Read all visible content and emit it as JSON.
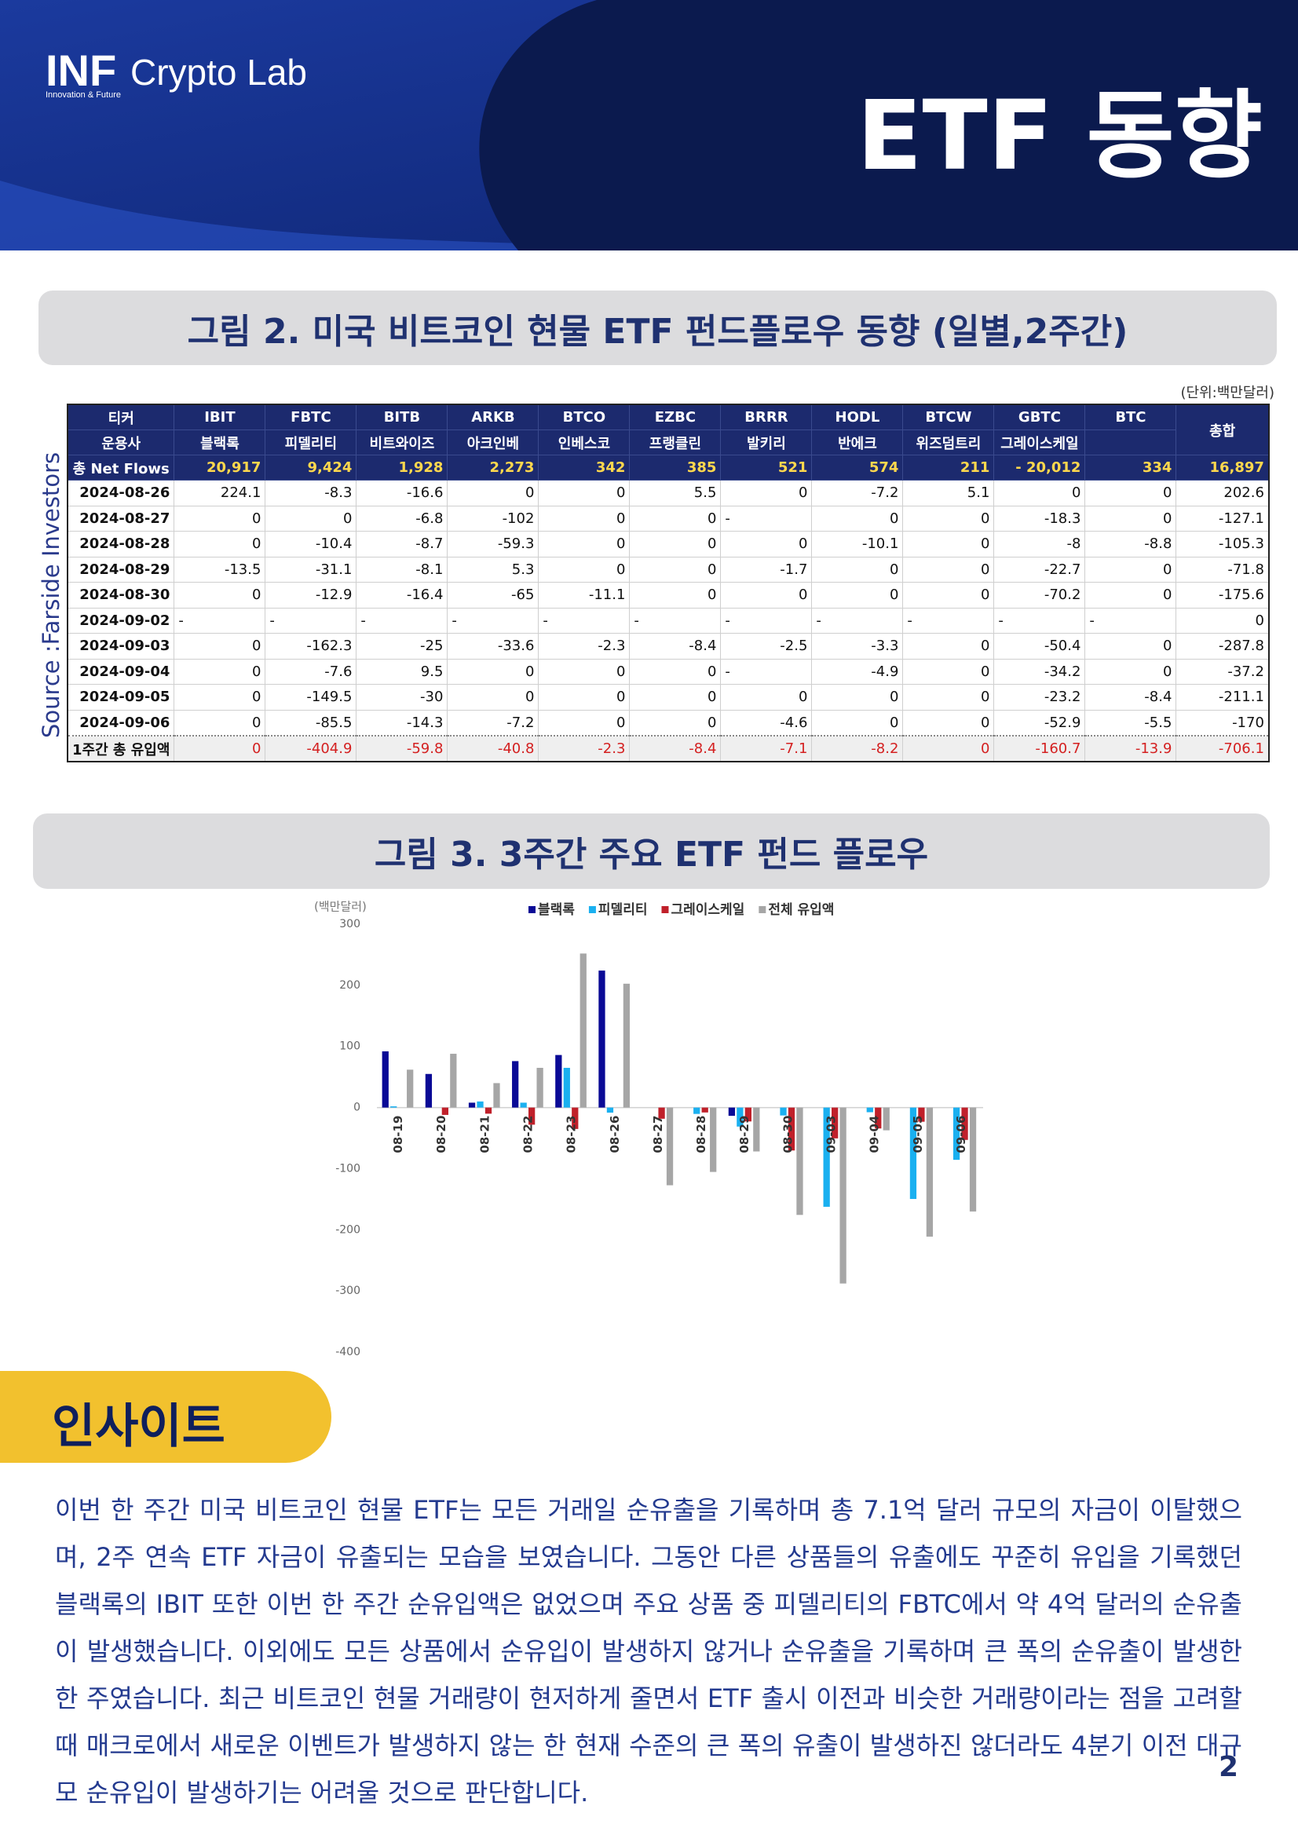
{
  "header": {
    "logo": "INF",
    "brand": "Crypto Lab",
    "tagline": "Innovation & Future",
    "title": "ETF 동향"
  },
  "figure2": {
    "title": "그림 2.  미국 비트코인 현물 ETF 펀드플로우 동향 (일별,2주간)",
    "unit": "(단위:백만달러)",
    "source": "Source :Farside Investors",
    "table": {
      "ticker_label": "티커",
      "issuer_label": "운용사",
      "total_label": "총합",
      "tickers": [
        "IBIT",
        "FBTC",
        "BITB",
        "ARKB",
        "BTCO",
        "EZBC",
        "BRRR",
        "HODL",
        "BTCW",
        "GBTC",
        "BTC"
      ],
      "issuers": [
        "블랙록",
        "피델리티",
        "비트와이즈",
        "아크인베",
        "인베스코",
        "프랭클린",
        "발키리",
        "반에크",
        "위즈덤트리",
        "그레이스케일"
      ],
      "net_flows": {
        "label": "총 Net Flows",
        "cells": [
          "20,917",
          "9,424",
          "1,928",
          "2,273",
          "342",
          "385",
          "521",
          "574",
          "211",
          "- 20,012",
          "334",
          "16,897"
        ]
      },
      "rows": [
        {
          "date": "2024-08-26",
          "cells": [
            "224.1",
            "-8.3",
            "-16.6",
            "0",
            "0",
            "5.5",
            "0",
            "-7.2",
            "5.1",
            "0",
            "0",
            "202.6"
          ]
        },
        {
          "date": "2024-08-27",
          "cells": [
            "0",
            "0",
            "-6.8",
            "-102",
            "0",
            "0",
            "-",
            "0",
            "0",
            "-18.3",
            "0",
            "-127.1"
          ]
        },
        {
          "date": "2024-08-28",
          "cells": [
            "0",
            "-10.4",
            "-8.7",
            "-59.3",
            "0",
            "0",
            "0",
            "-10.1",
            "0",
            "-8",
            "-8.8",
            "-105.3"
          ]
        },
        {
          "date": "2024-08-29",
          "cells": [
            "-13.5",
            "-31.1",
            "-8.1",
            "5.3",
            "0",
            "0",
            "-1.7",
            "0",
            "0",
            "-22.7",
            "0",
            "-71.8"
          ]
        },
        {
          "date": "2024-08-30",
          "cells": [
            "0",
            "-12.9",
            "-16.4",
            "-65",
            "-11.1",
            "0",
            "0",
            "0",
            "0",
            "-70.2",
            "0",
            "-175.6"
          ]
        },
        {
          "date": "2024-09-02",
          "cells": [
            "-",
            "-",
            "-",
            "-",
            "-",
            "-",
            "-",
            "-",
            "-",
            "-",
            "-",
            "0"
          ]
        },
        {
          "date": "2024-09-03",
          "cells": [
            "0",
            "-162.3",
            "-25",
            "-33.6",
            "-2.3",
            "-8.4",
            "-2.5",
            "-3.3",
            "0",
            "-50.4",
            "0",
            "-287.8"
          ]
        },
        {
          "date": "2024-09-04",
          "cells": [
            "0",
            "-7.6",
            "9.5",
            "0",
            "0",
            "0",
            "-",
            "-4.9",
            "0",
            "-34.2",
            "0",
            "-37.2"
          ]
        },
        {
          "date": "2024-09-05",
          "cells": [
            "0",
            "-149.5",
            "-30",
            "0",
            "0",
            "0",
            "0",
            "0",
            "0",
            "-23.2",
            "-8.4",
            "-211.1"
          ]
        },
        {
          "date": "2024-09-06",
          "cells": [
            "0",
            "-85.5",
            "-14.3",
            "-7.2",
            "0",
            "0",
            "-4.6",
            "0",
            "0",
            "-52.9",
            "-5.5",
            "-170"
          ]
        }
      ],
      "total_row": {
        "label": "1주간 총 유입액",
        "cells": [
          "0",
          "-404.9",
          "-59.8",
          "-40.8",
          "-2.3",
          "-8.4",
          "-7.1",
          "-8.2",
          "0",
          "-160.7",
          "-13.9",
          "-706.1"
        ]
      }
    }
  },
  "figure3": {
    "title": "그림 3.  3주간 주요 ETF 펀드 플로우",
    "chart": {
      "type": "bar",
      "y_label": "(백만달러)",
      "categories": [
        "08-19",
        "08-20",
        "08-21",
        "08-22",
        "08-23",
        "08-26",
        "08-27",
        "08-28",
        "08-29",
        "08-30",
        "09-03",
        "09-04",
        "09-05",
        "09-06"
      ],
      "series": [
        {
          "name": "블랙록",
          "color": "#0a0a96",
          "values": [
            92,
            55,
            8,
            76,
            86,
            224.1,
            0,
            0,
            -13.5,
            0,
            0,
            0,
            0,
            0
          ]
        },
        {
          "name": "피델리티",
          "color": "#1ab0f0",
          "values": [
            2,
            0,
            10,
            8,
            65,
            -8.3,
            0,
            -10.4,
            -31.1,
            -12.9,
            -162.3,
            -7.6,
            -149.5,
            -85.5
          ]
        },
        {
          "name": "그레이스케일",
          "color": "#c0202a",
          "values": [
            0,
            -12,
            -10,
            -28,
            -35,
            0,
            -18.3,
            -8,
            -22.7,
            -70.2,
            -50.4,
            -34.2,
            -23.2,
            -52.9
          ]
        },
        {
          "name": "전체 유입액",
          "color": "#a6a6a6",
          "values": [
            62,
            88,
            40,
            65,
            252,
            202.6,
            -127.1,
            -105.3,
            -71.8,
            -175.6,
            -287.8,
            -37.2,
            -211.1,
            -170
          ]
        }
      ],
      "ylim": [
        -400,
        300
      ],
      "yticks": [
        300,
        200,
        100,
        0,
        -100,
        -200,
        -300,
        -400
      ]
    }
  },
  "insight": {
    "heading": "인사이트",
    "paragraph": "이번 한 주간 미국 비트코인 현물 ETF는 모든 거래일 순유출을 기록하며 총 7.1억 달러 규모의 자금이 이탈했으며, 2주 연속 ETF 자금이 유출되는 모습을 보였습니다. 그동안 다른 상품들의 유출에도 꾸준히 유입을 기록했던 블랙록의 IBIT 또한 이번 한 주간 순유입액은 없었으며 주요 상품 중 피델리티의 FBTC에서 약 4억 달러의 순유출이 발생했습니다. 이외에도 모든 상품에서 순유입이 발생하지 않거나 순유출을 기록하며 큰 폭의 순유출이 발생한 한 주였습니다. 최근 비트코인 현물 거래량이 현저하게 줄면서 ETF 출시 이전과 비슷한 거래량이라는 점을 고려할 때 매크로에서 새로운 이벤트가 발생하지 않는 한 현재 수준의 큰 폭의 유출이 발생하진 않더라도 4분기 이전 대규모 순유입이 발생하기는 어려울 것으로 판단합니다."
  },
  "page_number": "2"
}
